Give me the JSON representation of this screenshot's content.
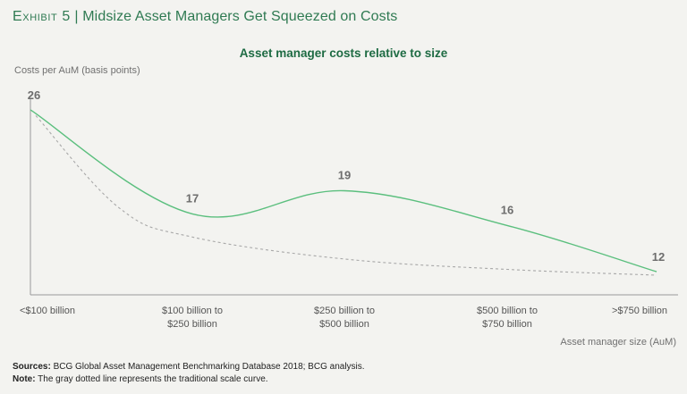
{
  "exhibit": {
    "label": "Exhibit 5",
    "separator": "|",
    "title": "Midsize Asset Managers Get Squeezed on Costs"
  },
  "chart_data": {
    "type": "line",
    "title": "Asset manager costs relative to size",
    "ylabel": "Costs per AuM (basis points)",
    "xlabel": "Asset manager size (AuM)",
    "categories": [
      [
        "<$100 billion"
      ],
      [
        "$100 billion to",
        "$250 billion"
      ],
      [
        "$250 billion to",
        "$500 billion"
      ],
      [
        "$500 billion to",
        "$750 billion"
      ],
      [
        ">$750 billion"
      ]
    ],
    "ylim": [
      10,
      27
    ],
    "series": [
      {
        "color": "#5bbf7e",
        "style": "solid",
        "x": [
          0,
          1,
          2,
          3,
          4
        ],
        "values": [
          26,
          17,
          19,
          16,
          12
        ],
        "value_labels": [
          "26",
          "17",
          "19",
          "16",
          "12"
        ]
      },
      {
        "color": "#a8a8a8",
        "style": "dotted",
        "x": [
          0,
          0.5,
          1,
          2,
          3,
          4
        ],
        "values": [
          25.5,
          17.5,
          15.0,
          13.1,
          12.2,
          11.7
        ]
      }
    ],
    "grid": false,
    "legend": "none"
  },
  "footer": {
    "sources_label": "Sources:",
    "sources_text": "BCG Global Asset Management Benchmarking Database 2018; BCG analysis.",
    "note_label": "Note:",
    "note_text": "The gray dotted line represents the traditional scale curve."
  }
}
